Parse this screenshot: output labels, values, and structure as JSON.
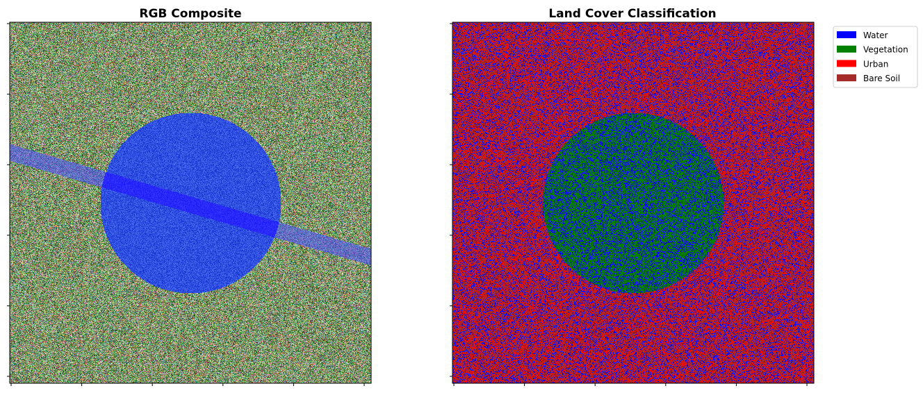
{
  "chart_data": [
    {
      "type": "heatmap",
      "title": "RGB Composite",
      "xlabel": "",
      "ylabel": "",
      "x_ticks_labeled": false,
      "y_ticks_labeled": false,
      "grid": false,
      "content": {
        "background_colors": [
          "#6fa552",
          "#95b06a",
          "#c07a6a",
          "#4f9d6f",
          "#8e8fa0",
          "#5a7a49"
        ],
        "features": [
          {
            "shape": "circle",
            "color": "#2f4fe0",
            "center": [
              0.5,
              0.5
            ],
            "radius": 0.25
          },
          {
            "shape": "band",
            "color": "#4a4ef0",
            "from": [
              0.0,
              0.36
            ],
            "to": [
              1.0,
              0.65
            ]
          }
        ]
      }
    },
    {
      "type": "heatmap",
      "title": "Land Cover Classification",
      "xlabel": "",
      "ylabel": "",
      "x_ticks_labeled": false,
      "y_ticks_labeled": false,
      "grid": false,
      "legend_placement": "outside-top-right",
      "classes": [
        {
          "name": "Water",
          "color": "#0000ff"
        },
        {
          "name": "Vegetation",
          "color": "#008000"
        },
        {
          "name": "Urban",
          "color": "#ff0000"
        },
        {
          "name": "Bare Soil",
          "color": "#a52a2a"
        }
      ],
      "content": {
        "background_mix": [
          "#0000ff",
          "#ff0000",
          "#a52a2a",
          "#a52a2a"
        ],
        "features": [
          {
            "shape": "circle",
            "mix": [
              "#008000",
              "#0000ff",
              "#008000"
            ],
            "center": [
              0.5,
              0.5
            ],
            "radius": 0.25
          }
        ]
      }
    }
  ]
}
